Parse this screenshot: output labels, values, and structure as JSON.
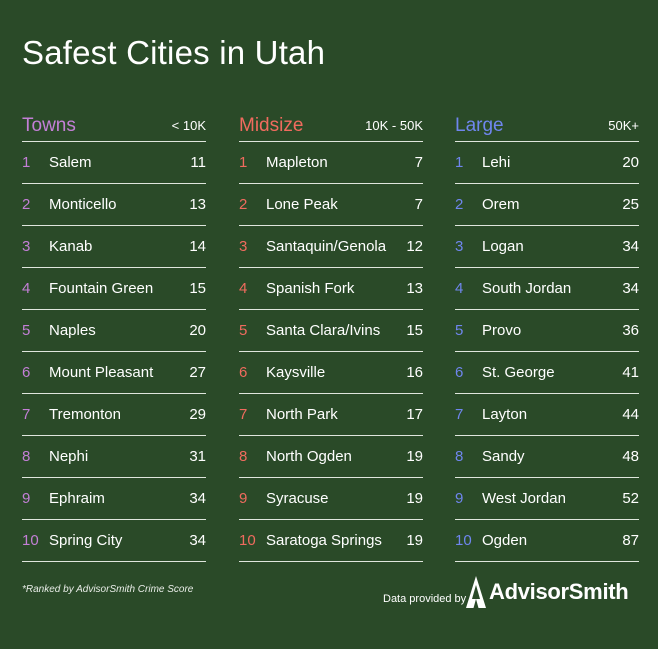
{
  "title": "Safest Cities in Utah",
  "colors": {
    "background": "#2a4a28",
    "towns": "#c37fd6",
    "midsize": "#f06b5e",
    "large": "#6f86ee"
  },
  "columns": [
    {
      "name": "Towns",
      "range": "< 10K",
      "rows": [
        {
          "rank": "1",
          "city": "Salem",
          "score": "11"
        },
        {
          "rank": "2",
          "city": "Monticello",
          "score": "13"
        },
        {
          "rank": "3",
          "city": "Kanab",
          "score": "14"
        },
        {
          "rank": "4",
          "city": "Fountain Green",
          "score": "15"
        },
        {
          "rank": "5",
          "city": "Naples",
          "score": "20"
        },
        {
          "rank": "6",
          "city": "Mount Pleasant",
          "score": "27"
        },
        {
          "rank": "7",
          "city": "Tremonton",
          "score": "29"
        },
        {
          "rank": "8",
          "city": "Nephi",
          "score": "31"
        },
        {
          "rank": "9",
          "city": "Ephraim",
          "score": "34"
        },
        {
          "rank": "10",
          "city": "Spring City",
          "score": "34"
        }
      ]
    },
    {
      "name": "Midsize",
      "range": "10K - 50K",
      "rows": [
        {
          "rank": "1",
          "city": "Mapleton",
          "score": "7"
        },
        {
          "rank": "2",
          "city": "Lone Peak",
          "score": "7"
        },
        {
          "rank": "3",
          "city": "Santaquin/Genola",
          "score": "12"
        },
        {
          "rank": "4",
          "city": "Spanish Fork",
          "score": "13"
        },
        {
          "rank": "5",
          "city": "Santa Clara/Ivins",
          "score": "15"
        },
        {
          "rank": "6",
          "city": "Kaysville",
          "score": "16"
        },
        {
          "rank": "7",
          "city": "North Park",
          "score": "17"
        },
        {
          "rank": "8",
          "city": "North Ogden",
          "score": "19"
        },
        {
          "rank": "9",
          "city": "Syracuse",
          "score": "19"
        },
        {
          "rank": "10",
          "city": "Saratoga Springs",
          "score": "19"
        }
      ]
    },
    {
      "name": "Large",
      "range": "50K+",
      "rows": [
        {
          "rank": "1",
          "city": "Lehi",
          "score": "20"
        },
        {
          "rank": "2",
          "city": "Orem",
          "score": "25"
        },
        {
          "rank": "3",
          "city": "Logan",
          "score": "34"
        },
        {
          "rank": "4",
          "city": "South Jordan",
          "score": "34"
        },
        {
          "rank": "5",
          "city": "Provo",
          "score": "36"
        },
        {
          "rank": "6",
          "city": "St. George",
          "score": "41"
        },
        {
          "rank": "7",
          "city": "Layton",
          "score": "44"
        },
        {
          "rank": "8",
          "city": "Sandy",
          "score": "48"
        },
        {
          "rank": "9",
          "city": "West Jordan",
          "score": "52"
        },
        {
          "rank": "10",
          "city": "Ogden",
          "score": "87"
        }
      ]
    }
  ],
  "footnote": "*Ranked by AdvisorSmith Crime Score",
  "credit": "Data provided by",
  "brand": "AdvisorSmith",
  "brand_icon": "advisorsmith-logo-icon"
}
